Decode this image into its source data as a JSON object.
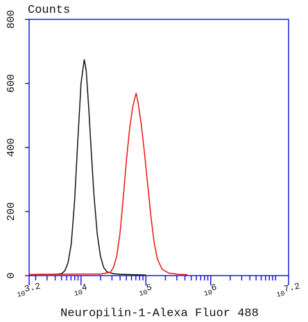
{
  "chart_data": {
    "type": "line",
    "y_label": "Counts",
    "x_label": "Neuropilin-1-Alexa Fluor 488",
    "xscale": "log",
    "xlim": [
      1585,
      15849000
    ],
    "ylim": [
      0,
      800
    ],
    "yticks": [
      0,
      200,
      400,
      600,
      800
    ],
    "xticks": [
      {
        "value": 1585,
        "label": "10^3.2"
      },
      {
        "value": 10000,
        "label": "10^4"
      },
      {
        "value": 100000,
        "label": "10^5"
      },
      {
        "value": 1000000,
        "label": "10^6"
      },
      {
        "value": 15849000,
        "label": "10^7.2"
      }
    ],
    "xminorticks": [
      2000,
      3000,
      4000,
      5000,
      6000,
      7000,
      8000,
      9000,
      20000,
      30000,
      40000,
      50000,
      60000,
      70000,
      80000,
      90000,
      200000,
      300000,
      400000,
      500000,
      600000,
      700000,
      800000,
      900000,
      2000000,
      3000000,
      4000000,
      5000000,
      6000000,
      7000000,
      8000000,
      9000000,
      10000000
    ],
    "axis_color": "#1a1adb",
    "series": [
      {
        "color": "#111111",
        "x": [
          1585,
          2512,
          3981,
          5012,
          5623,
          6310,
          7079,
          7943,
          8913,
          10000,
          11220,
          12023,
          13183,
          14454,
          15849,
          17783,
          19953,
          22387,
          25119,
          31623,
          39811,
          63096,
          100000
        ],
        "values": [
          3,
          4,
          4,
          6,
          15,
          40,
          100,
          230,
          420,
          600,
          675,
          640,
          520,
          380,
          250,
          130,
          60,
          25,
          12,
          6,
          4,
          3,
          2
        ]
      },
      {
        "color": "#ee1111",
        "x": [
          1585,
          3981,
          10000,
          19953,
          28184,
          31623,
          35481,
          39811,
          44668,
          50119,
          56234,
          63096,
          70795,
          75858,
          85114,
          95499,
          107152,
          120226,
          134896,
          151356,
          177828,
          223872,
          316228,
          436516
        ],
        "values": [
          3,
          4,
          5,
          5,
          10,
          25,
          60,
          130,
          240,
          360,
          460,
          530,
          570,
          540,
          470,
          380,
          280,
          180,
          100,
          50,
          20,
          8,
          4,
          3
        ]
      }
    ]
  }
}
